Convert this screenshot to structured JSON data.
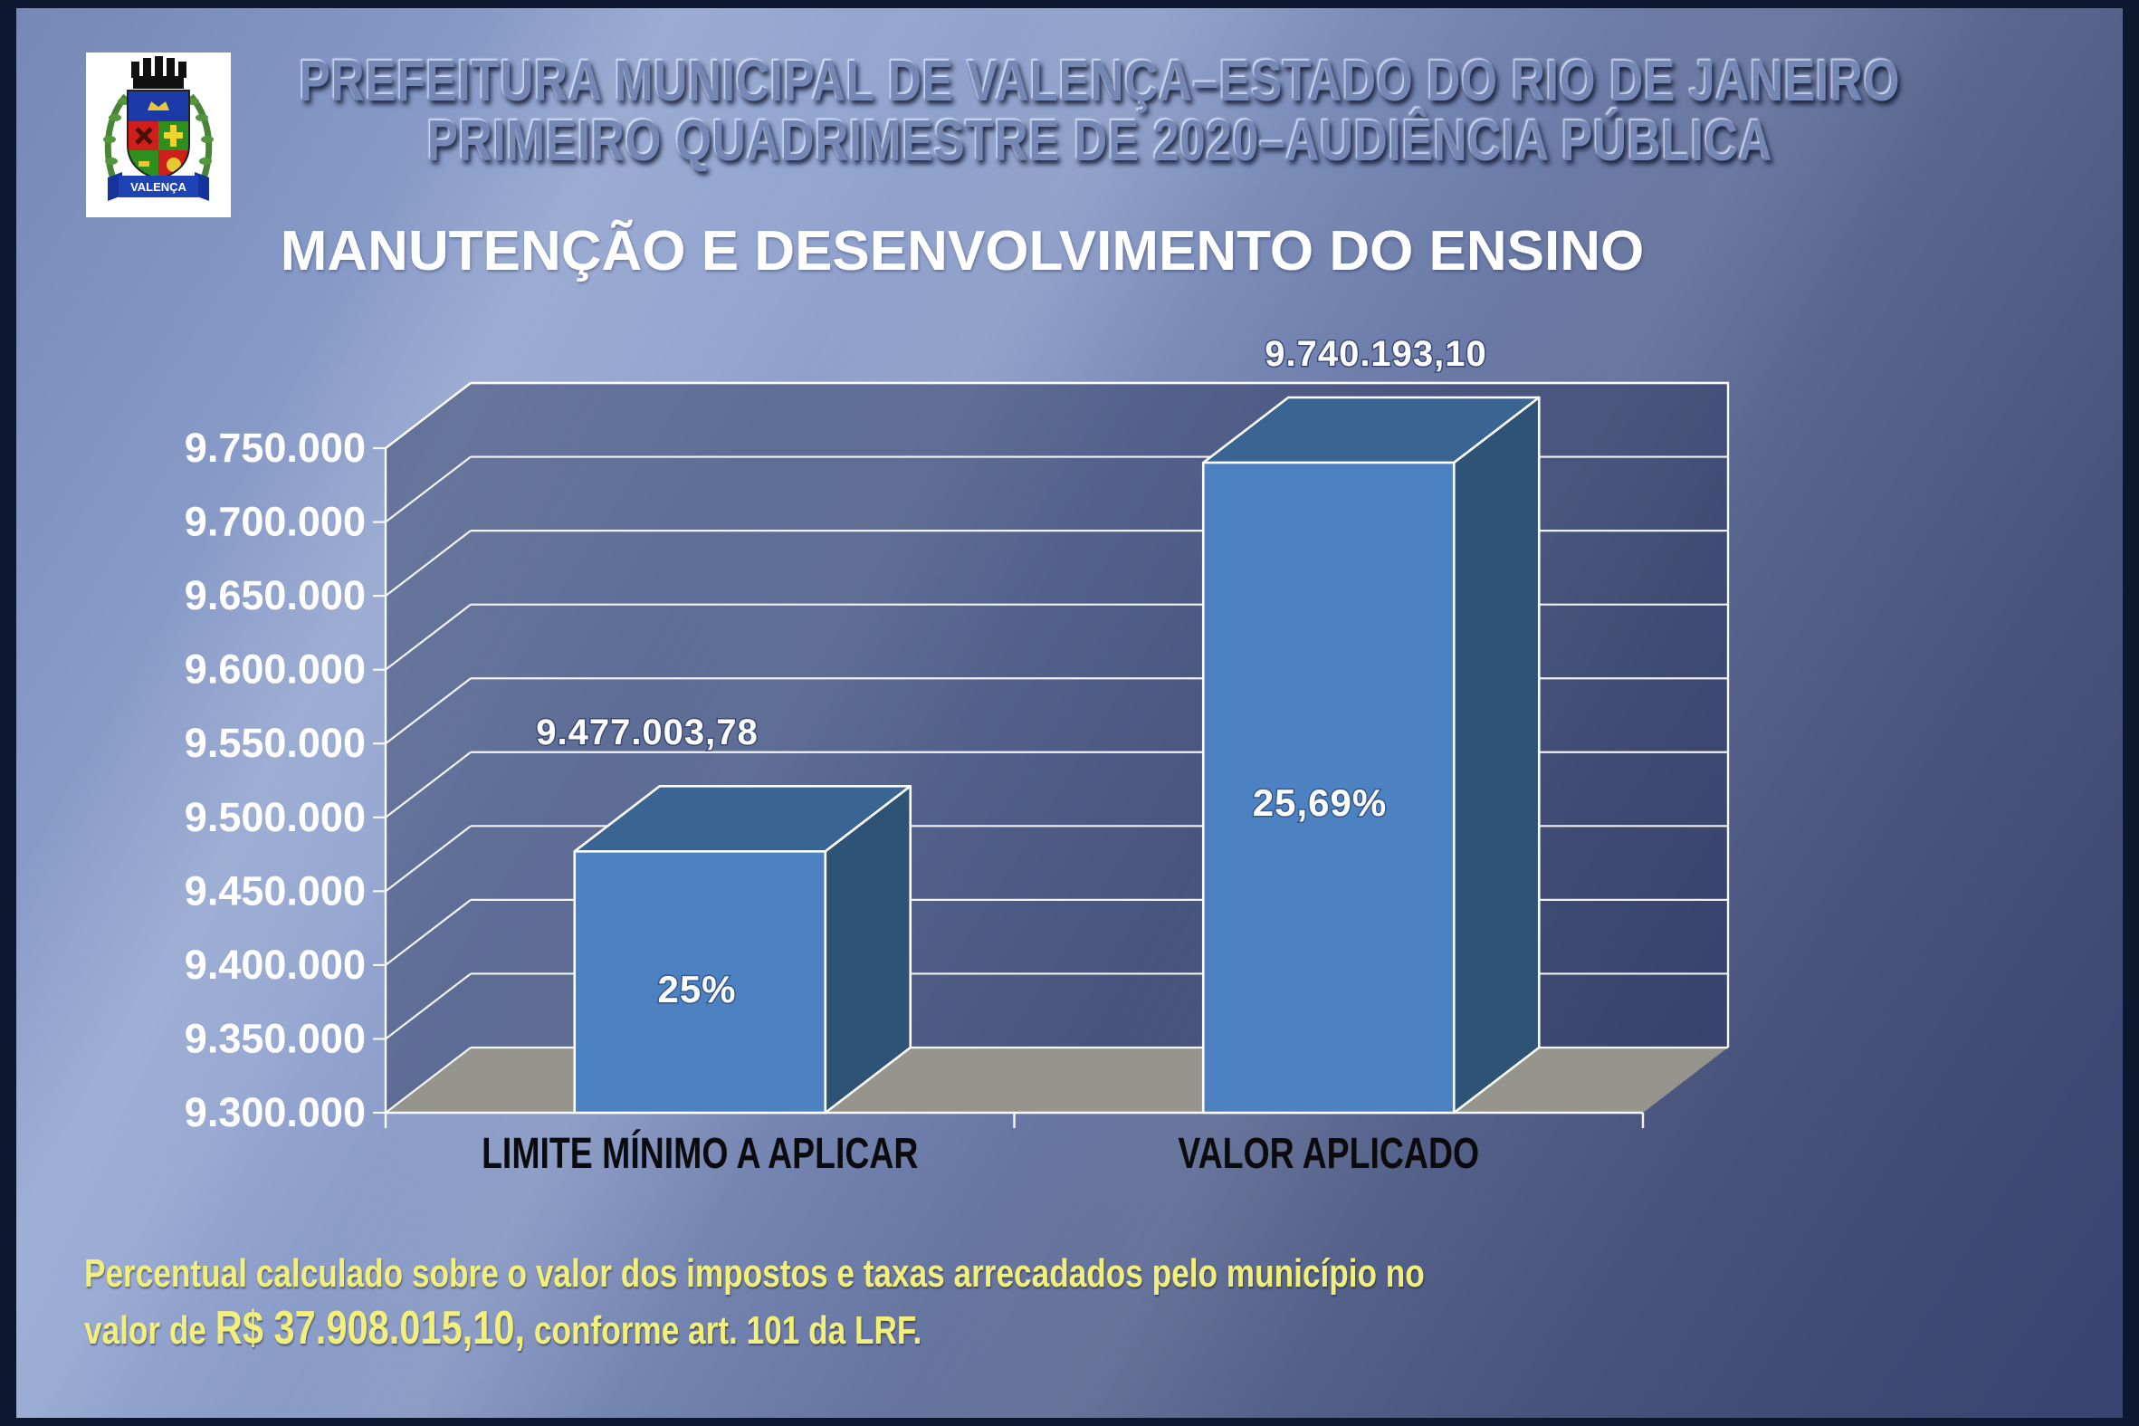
{
  "header": {
    "line1": "PREFEITURA MUNICIPAL DE VALENÇA–ESTADO DO RIO DE JANEIRO",
    "line2": "PRIMEIRO QUADRIMESTRE DE 2020–AUDIÊNCIA PÚBLICA"
  },
  "logo": {
    "banner_text": "VALENÇA"
  },
  "title": "MANUTENÇÃO E DESENVOLVIMENTO DO ENSINO",
  "chart_data": {
    "type": "bar",
    "projection_3d": true,
    "title": "MANUTENÇÃO E DESENVOLVIMENTO DO ENSINO",
    "categories": [
      "LIMITE MÍNIMO A APLICAR",
      "VALOR APLICADO"
    ],
    "values": [
      9477003.78,
      9740193.1
    ],
    "bar_value_labels": [
      "9.477.003,78",
      "9.740.193,10"
    ],
    "bar_percent_labels": [
      "25%",
      "25,69%"
    ],
    "ylim": [
      9300000,
      9750000
    ],
    "ytick_step": 50000,
    "ytick_labels_top_to_bottom": [
      "9.750.000",
      "9.700.000",
      "9.650.000",
      "9.600.000",
      "9.550.000",
      "9.500.000",
      "9.450.000",
      "9.400.000",
      "9.350.000",
      "9.300.000"
    ],
    "grid": true,
    "legend": "none",
    "colors": {
      "bar_front": "#4d82c2",
      "bar_top": "#3a6492",
      "bar_side": "#2f5277",
      "floor": "#95958e",
      "wall": "rgba(28,40,78,0.42)",
      "gridline": "#ffffff"
    }
  },
  "footer": {
    "line1": "Percentual calculado sobre o valor dos impostos e taxas arrecadados pelo município  no",
    "line2_prefix": "valor de ",
    "line2_amount": "R$ 37.908.015,10,",
    "line2_suffix": " conforme art. 101 da LRF."
  },
  "colors": {
    "background_top": "#8699c7",
    "background_bottom": "#394471",
    "border": "#0c1830",
    "footer_yellow": "#f3ef7b",
    "header_emboss": "#7487b5",
    "title_white": "#ffffff"
  }
}
